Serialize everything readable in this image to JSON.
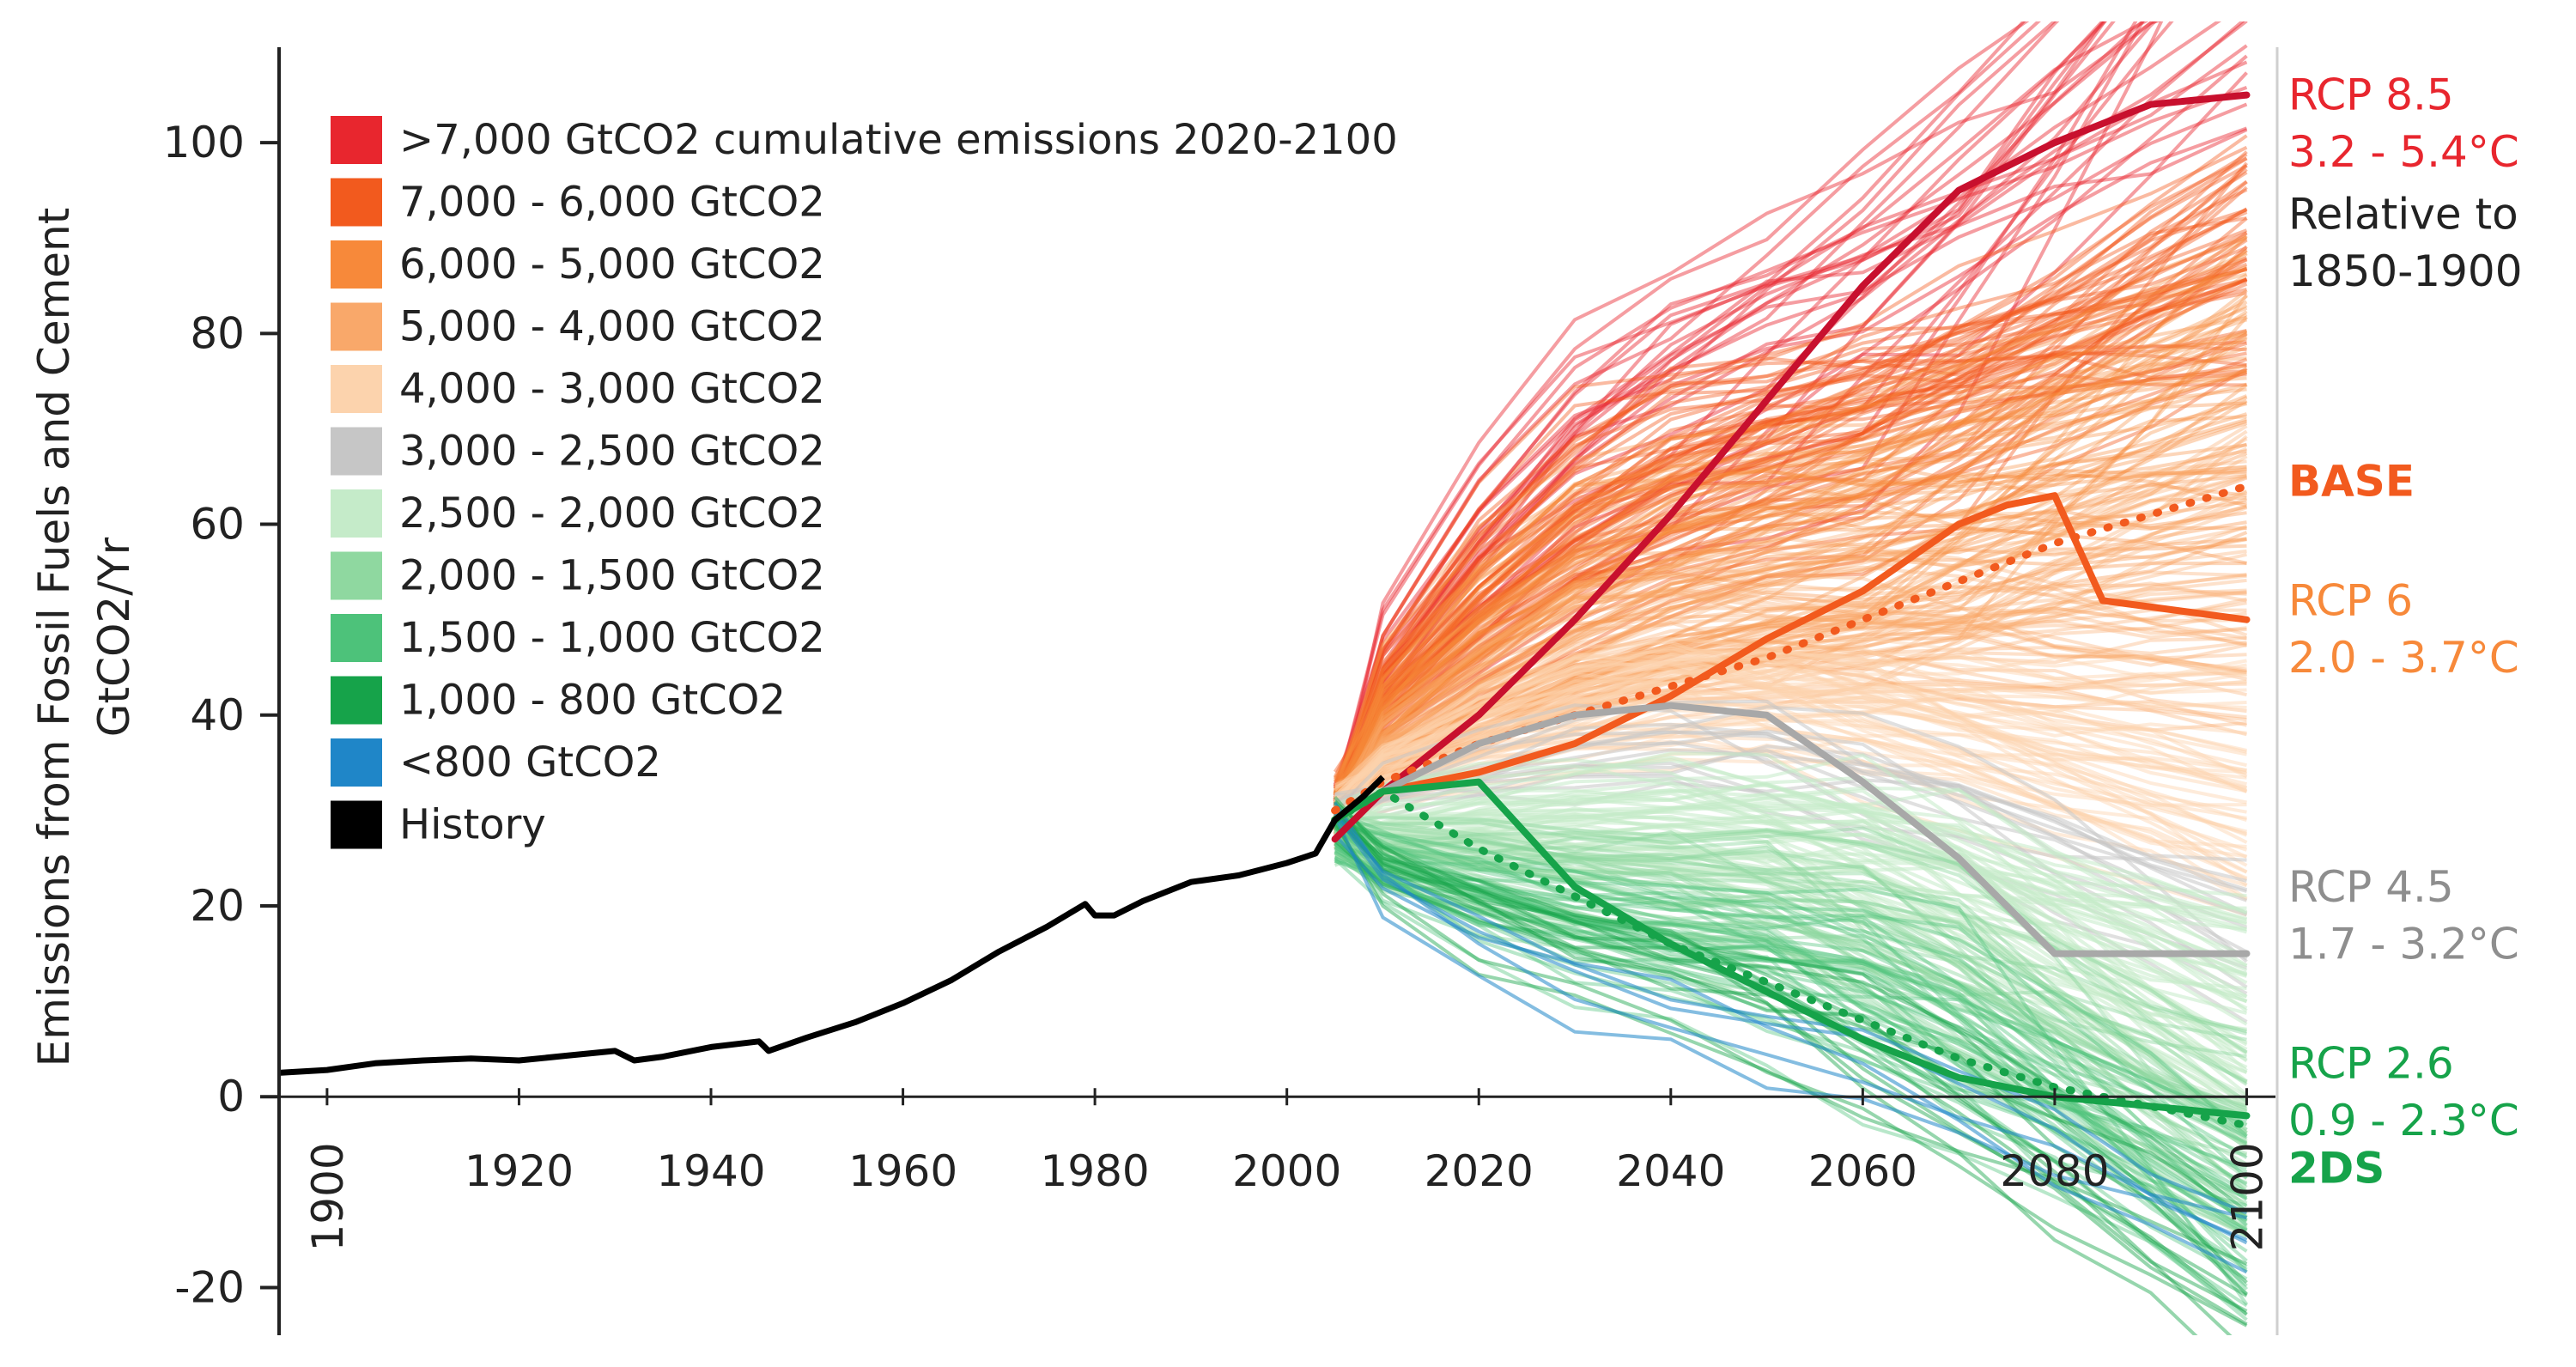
{
  "chart_data": {
    "type": "line",
    "title": "",
    "ylabel_line1": "Emissions from Fossil Fuels and Cement",
    "ylabel_line2": "GtCO2/Yr",
    "xlabel": "",
    "xlim": [
      1895,
      2103
    ],
    "ylim": [
      -25,
      110
    ],
    "x_ticks": [
      "1900",
      "1920",
      "1940",
      "1960",
      "1980",
      "2000",
      "2020",
      "2040",
      "2060",
      "2080",
      "2100"
    ],
    "y_ticks": [
      "100",
      "80",
      "60",
      "40",
      "20",
      "0",
      "-20"
    ],
    "x_tick_values": [
      1900,
      1920,
      1940,
      1960,
      1980,
      2000,
      2020,
      2040,
      2060,
      2080,
      2100
    ],
    "y_tick_values": [
      100,
      80,
      60,
      40,
      20,
      0,
      -20
    ],
    "legend": [
      {
        "label": ">7,000 GtCO2 cumulative emissions 2020-2100",
        "color": "#e8262e"
      },
      {
        "label": "7,000 - 6,000 GtCO2",
        "color": "#f25a1e"
      },
      {
        "label": "6,000 - 5,000 GtCO2",
        "color": "#f7893a"
      },
      {
        "label": "5,000 - 4,000 GtCO2",
        "color": "#f9a86a"
      },
      {
        "label": "4,000 - 3,000 GtCO2",
        "color": "#fcd3ad"
      },
      {
        "label": "3,000 - 2,500 GtCO2",
        "color": "#c6c6c6"
      },
      {
        "label": "2,500 - 2,000 GtCO2",
        "color": "#c5ebc9"
      },
      {
        "label": "2,000 - 1,500 GtCO2",
        "color": "#8fd8a0"
      },
      {
        "label": "1,500 - 1,000 GtCO2",
        "color": "#4dc27a"
      },
      {
        "label": "1,000 - 800 GtCO2",
        "color": "#16a34a"
      },
      {
        "label": "<800 GtCO2",
        "color": "#1f86c8"
      },
      {
        "label": "History",
        "color": "#000000"
      }
    ],
    "history": {
      "name": "History",
      "color": "#000000",
      "x": [
        1895,
        1900,
        1905,
        1910,
        1915,
        1920,
        1925,
        1930,
        1932,
        1935,
        1940,
        1945,
        1946,
        1950,
        1955,
        1960,
        1965,
        1970,
        1975,
        1979,
        1980,
        1982,
        1985,
        1990,
        1995,
        2000,
        2003,
        2005,
        2008,
        2010
      ],
      "y": [
        2.5,
        2.8,
        3.5,
        3.8,
        4.0,
        3.8,
        4.3,
        4.8,
        3.8,
        4.2,
        5.2,
        5.8,
        4.8,
        6.2,
        7.8,
        9.8,
        12.2,
        15.2,
        17.8,
        20.2,
        19.0,
        19.0,
        20.5,
        22.5,
        23.2,
        24.5,
        25.5,
        29.0,
        31.5,
        33.5
      ]
    },
    "scenarios": [
      {
        "name": "RCP 8.5",
        "color": "#c8102e",
        "dashed": false,
        "x": [
          2005,
          2010,
          2020,
          2030,
          2040,
          2050,
          2060,
          2070,
          2080,
          2090,
          2100
        ],
        "y": [
          27,
          32,
          40,
          50,
          61,
          73,
          85,
          95,
          100,
          104,
          105
        ]
      },
      {
        "name": "BASE",
        "color": "#f25a1e",
        "dashed": true,
        "x": [
          2005,
          2010,
          2020,
          2030,
          2040,
          2050,
          2060,
          2070,
          2080,
          2090,
          2100
        ],
        "y": [
          30,
          33,
          37,
          40,
          43,
          46,
          50,
          54,
          58,
          61,
          64
        ]
      },
      {
        "name": "RCP 6",
        "color": "#f25a1e",
        "dashed": false,
        "x": [
          2005,
          2010,
          2020,
          2030,
          2040,
          2050,
          2060,
          2070,
          2075,
          2080,
          2085,
          2100
        ],
        "y": [
          29,
          32,
          34,
          37,
          42,
          48,
          53,
          60,
          62,
          63,
          52,
          50
        ]
      },
      {
        "name": "RCP 4.5",
        "color": "#a8a8a8",
        "dashed": false,
        "x": [
          2005,
          2010,
          2020,
          2030,
          2040,
          2050,
          2060,
          2070,
          2080,
          2090,
          2100
        ],
        "y": [
          29,
          32,
          37,
          40,
          41,
          40,
          33,
          25,
          15,
          15,
          15
        ]
      },
      {
        "name": "RCP 2.6",
        "color": "#16a34a",
        "dashed": false,
        "x": [
          2005,
          2010,
          2020,
          2030,
          2040,
          2050,
          2060,
          2070,
          2080,
          2090,
          2100
        ],
        "y": [
          29,
          32,
          33,
          22,
          16,
          11,
          6,
          2,
          0,
          -1,
          -2
        ]
      },
      {
        "name": "2DS",
        "color": "#16a34a",
        "dashed": true,
        "x": [
          2005,
          2010,
          2020,
          2030,
          2040,
          2050,
          2060,
          2070,
          2080,
          2090,
          2100
        ],
        "y": [
          29,
          32,
          26,
          21,
          16,
          12,
          8,
          4,
          1,
          -1,
          -3
        ]
      }
    ],
    "annotations": [
      {
        "text": "RCP 8.5",
        "color": "#e8262e",
        "bold": false,
        "y": 105
      },
      {
        "text": "3.2 - 5.4°C",
        "color": "#e8262e",
        "bold": false,
        "y": 99
      },
      {
        "text": "Relative to",
        "color": "#222222",
        "bold": false,
        "y": 92.5
      },
      {
        "text": "1850-1900",
        "color": "#222222",
        "bold": false,
        "y": 86.5
      },
      {
        "text": "BASE",
        "color": "#f25a1e",
        "bold": true,
        "y": 64.5
      },
      {
        "text": "RCP 6",
        "color": "#f7893a",
        "bold": false,
        "y": 52
      },
      {
        "text": "2.0 - 3.7°C",
        "color": "#f7893a",
        "bold": false,
        "y": 46
      },
      {
        "text": "RCP 4.5",
        "color": "#8e8e8e",
        "bold": false,
        "y": 22
      },
      {
        "text": "1.7 - 3.2°C",
        "color": "#8e8e8e",
        "bold": false,
        "y": 16
      },
      {
        "text": "RCP 2.6",
        "color": "#16a34a",
        "bold": false,
        "y": 3.5
      },
      {
        "text": "0.9 - 2.3°C",
        "color": "#16a34a",
        "bold": false,
        "y": -2.5
      },
      {
        "text": "2DS",
        "color": "#16a34a",
        "bold": true,
        "y": -7.5
      }
    ]
  }
}
